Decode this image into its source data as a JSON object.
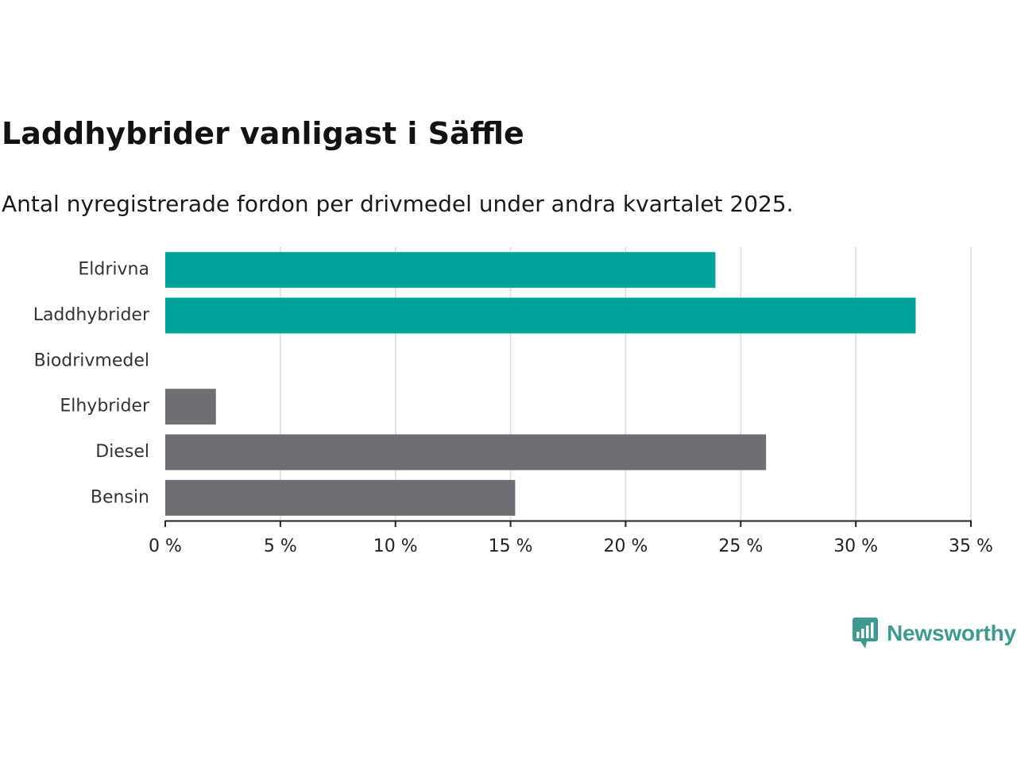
{
  "chart_data": {
    "type": "bar",
    "orientation": "horizontal",
    "title": "Laddhybrider vanligast i Säffle",
    "subtitle": "Antal nyregistrerade fordon per drivmedel under andra kvartalet 2025.",
    "categories": [
      "Eldrivna",
      "Laddhybrider",
      "Biodrivmedel",
      "Elhybrider",
      "Diesel",
      "Bensin"
    ],
    "values": [
      23.9,
      32.6,
      0,
      2.2,
      26.1,
      15.2
    ],
    "bar_colors": [
      "#00a39a",
      "#00a39a",
      "#00a39a",
      "#6f6e74",
      "#6f6e74",
      "#6f6e74"
    ],
    "xlim": [
      0,
      35
    ],
    "x_ticks": [
      0,
      5,
      10,
      15,
      20,
      25,
      30,
      35
    ],
    "x_tick_labels": [
      "0 %",
      "5 %",
      "10 %",
      "15 %",
      "20 %",
      "25 %",
      "30 %",
      "35 %"
    ],
    "grid": "vertical",
    "grid_color": "#dcdcdc"
  },
  "branding": {
    "logo_text": "Newsworthy",
    "logo_icon": "newsworthy-logo-icon",
    "logo_color": "#3d9a92"
  }
}
